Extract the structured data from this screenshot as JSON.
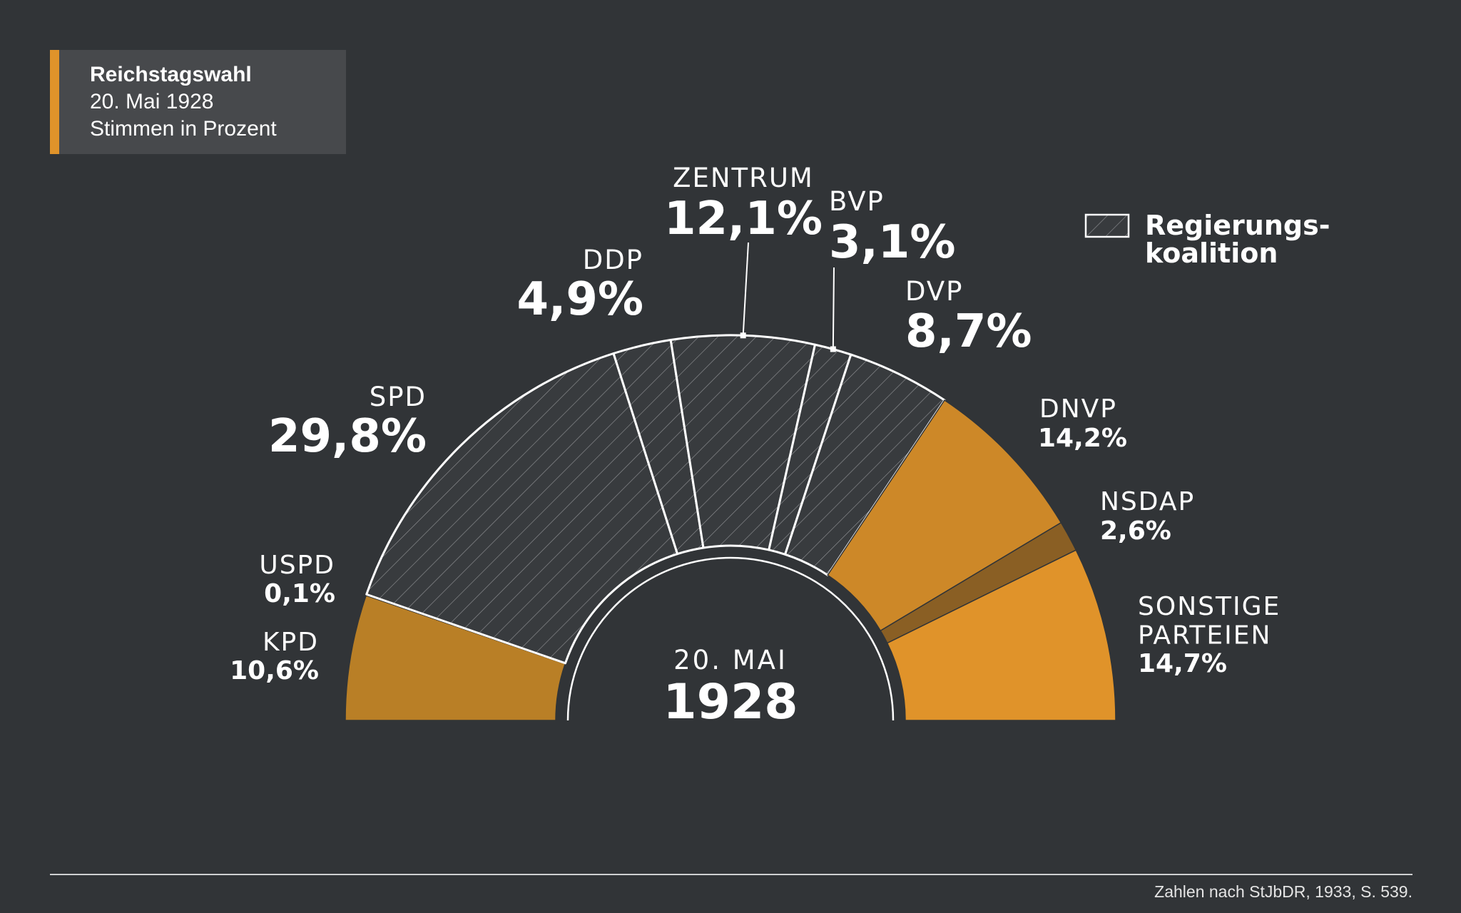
{
  "header": {
    "line1": "Reichstagswahl",
    "line2": "20. Mai 1928",
    "line3": "Stimmen in Prozent",
    "accent_color": "#e0932a"
  },
  "legend": {
    "line1": "Regierungs-",
    "line2": "koalition"
  },
  "center": {
    "date": "20. MAI",
    "year": "1928"
  },
  "source": "Zahlen nach StJbDR, 1933, S. 539.",
  "colors": {
    "background": "#313437",
    "coalition": "#383b3e",
    "kpd": "#b97f26",
    "dnvp": "#cd8828",
    "nsdap": "#8a5f24",
    "sonstige": "#e0932a"
  },
  "chart_data": {
    "type": "pie",
    "variant": "semicircle",
    "unit": "%",
    "slices": [
      {
        "party": "KPD",
        "label": [
          "KPD"
        ],
        "value_label": "10,6%",
        "value": 10.6,
        "coalition": false,
        "color": "#b97f26"
      },
      {
        "party": "USPD",
        "label": [
          "USPD"
        ],
        "value_label": "0,1%",
        "value": 0.1,
        "coalition": false,
        "color": "#b97f26"
      },
      {
        "party": "SPD",
        "label": [
          "SPD"
        ],
        "value_label": "29,8%",
        "value": 29.8,
        "coalition": true
      },
      {
        "party": "DDP",
        "label": [
          "DDP"
        ],
        "value_label": "4,9%",
        "value": 4.9,
        "coalition": true
      },
      {
        "party": "ZENTRUM",
        "label": [
          "ZENTRUM"
        ],
        "value_label": "12,1%",
        "value": 12.1,
        "coalition": true
      },
      {
        "party": "BVP",
        "label": [
          "BVP"
        ],
        "value_label": "3,1%",
        "value": 3.1,
        "coalition": true
      },
      {
        "party": "DVP",
        "label": [
          "DVP"
        ],
        "value_label": "8,7%",
        "value": 8.7,
        "coalition": true
      },
      {
        "party": "DNVP",
        "label": [
          "DNVP"
        ],
        "value_label": "14,2%",
        "value": 14.2,
        "coalition": false,
        "color": "#cd8828"
      },
      {
        "party": "NSDAP",
        "label": [
          "NSDAP"
        ],
        "value_label": "2,6%",
        "value": 2.6,
        "coalition": false,
        "color": "#8a5f24"
      },
      {
        "party": "SONSTIGE PARTEIEN",
        "label": [
          "SONSTIGE",
          "PARTEIEN"
        ],
        "value_label": "14,7%",
        "value": 14.7,
        "coalition": false,
        "color": "#e0932a"
      }
    ]
  }
}
